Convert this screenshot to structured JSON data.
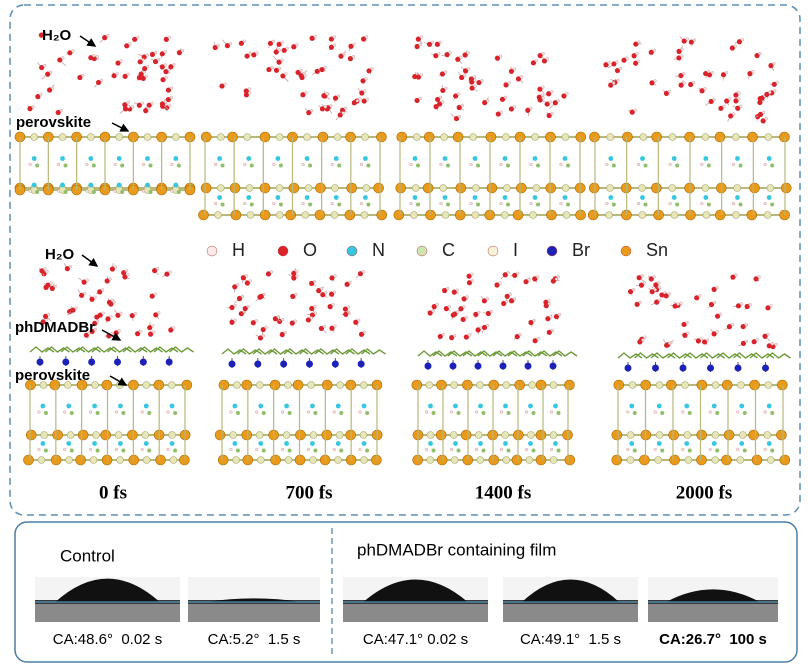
{
  "md_top": {
    "water_label": "H₂O",
    "perovskite_label": "perovskite"
  },
  "legend": [
    "H",
    "O",
    "N",
    "C",
    "I",
    "Br",
    "Sn"
  ],
  "md_bottom": {
    "water_label": "H₂O",
    "additive_label": "phDMADBr",
    "perovskite_label": "perovskite"
  },
  "times": [
    "0 fs",
    "700 fs",
    "1400 fs",
    "2000 fs"
  ],
  "contact_angle": {
    "control": {
      "title": "Control",
      "captions": [
        "CA:48.6°  0.02 s",
        "CA:5.2°  1.5 s"
      ]
    },
    "film": {
      "title": "phDMADBr containing film",
      "captions": [
        "CA:47.1° 0.02 s",
        "CA:49.1°  1.5 s",
        "CA:26.7°  100 s"
      ]
    }
  }
}
